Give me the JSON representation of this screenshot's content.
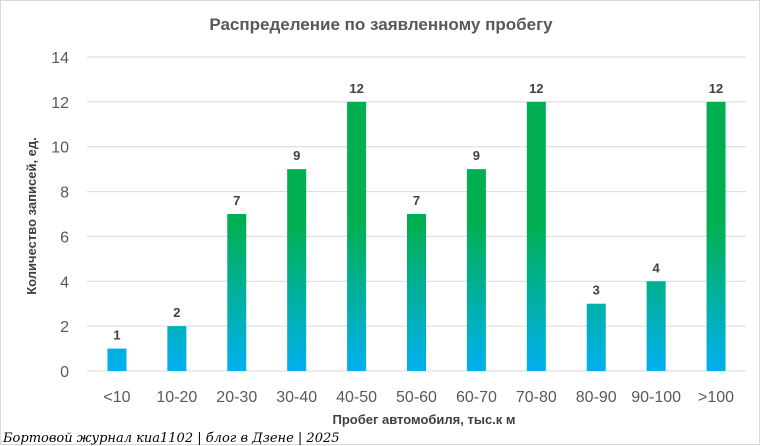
{
  "chart_data": {
    "type": "bar",
    "title": "Распределение по заявленному  пробегу",
    "xlabel": "Пробег автомобиля, тыс.к м",
    "ylabel": "Количество записей, ед.",
    "categories": [
      "<10",
      "10-20",
      "20-30",
      "30-40",
      "40-50",
      "50-60",
      "60-70",
      "70-80",
      "80-90",
      "90-100",
      ">100"
    ],
    "values": [
      1,
      2,
      7,
      9,
      12,
      7,
      9,
      12,
      3,
      4,
      12
    ],
    "ylim": [
      0,
      14
    ],
    "yticks": [
      0,
      2,
      4,
      6,
      8,
      10,
      12,
      14
    ],
    "grid": true,
    "legend": "none",
    "colors": {
      "bar_top": "#00b050",
      "bar_bottom": "#00b0f0",
      "grid": "#d9d9d9",
      "text": "#595959"
    }
  },
  "footer": {
    "credit": "Бортовой журнал киа1102 | блог в Дзене | 2025"
  }
}
